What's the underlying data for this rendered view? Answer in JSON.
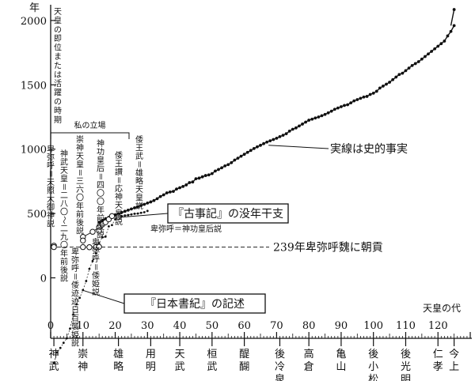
{
  "chart_data": {
    "type": "scatter",
    "y_unit": "年",
    "ylabel": "天皇の即位または活躍の時期",
    "xlabel": "天皇の代",
    "xlim": [
      0,
      130
    ],
    "ylim": [
      -470,
      2110
    ],
    "x_ticks": [
      10,
      20,
      30,
      40,
      50,
      60,
      70,
      80,
      90,
      100,
      110,
      120
    ],
    "y_ticks": [
      0,
      500,
      1000,
      1500,
      2000
    ],
    "emperors": [
      {
        "x": 1,
        "name": "神武"
      },
      {
        "x": 10,
        "name": "崇神"
      },
      {
        "x": 21,
        "name": "雄略"
      },
      {
        "x": 31,
        "name": "用明"
      },
      {
        "x": 40,
        "name": "天武"
      },
      {
        "x": 50,
        "name": "桓武"
      },
      {
        "x": 60,
        "name": "醍醐"
      },
      {
        "x": 71,
        "name": "後冷泉"
      },
      {
        "x": 80,
        "name": "高倉"
      },
      {
        "x": 90,
        "name": "亀山"
      },
      {
        "x": 100,
        "name": "後小松"
      },
      {
        "x": 110,
        "name": "後光明"
      },
      {
        "x": 120,
        "name": "仁孝"
      },
      {
        "x": 125,
        "name": "今上"
      }
    ],
    "series_historical": {
      "name": "実線は史的事実",
      "x": [
        15,
        16,
        17,
        18,
        19,
        20,
        21,
        22,
        23,
        24,
        25,
        26,
        27,
        28,
        29,
        30,
        31,
        32,
        33,
        34,
        35,
        36,
        37,
        38,
        39,
        40,
        41,
        42,
        43,
        44,
        45,
        46,
        47,
        48,
        49,
        50,
        51,
        52,
        53,
        54,
        55,
        56,
        57,
        58,
        59,
        60,
        61,
        62,
        63,
        64,
        65,
        66,
        67,
        68,
        69,
        70,
        71,
        72,
        73,
        74,
        75,
        76,
        77,
        78,
        79,
        80,
        81,
        82,
        83,
        84,
        85,
        86,
        87,
        88,
        89,
        90,
        91,
        92,
        93,
        94,
        95,
        96,
        97,
        98,
        99,
        100,
        101,
        102,
        103,
        104,
        105,
        106,
        107,
        108,
        109,
        110,
        111,
        112,
        113,
        114,
        115,
        116,
        117,
        118,
        119,
        120,
        121,
        122,
        123,
        124,
        125
      ],
      "y": [
        432,
        446,
        460,
        470,
        480,
        490,
        499,
        508,
        517,
        526,
        535,
        544,
        553,
        562,
        571,
        581,
        590,
        601,
        615,
        632,
        645,
        660,
        667,
        672,
        690,
        700,
        710,
        722,
        740,
        745,
        770,
        775,
        785,
        795,
        800,
        810,
        830,
        842,
        855,
        870,
        880,
        895,
        915,
        930,
        945,
        960,
        975,
        990,
        1005,
        1018,
        1030,
        1043,
        1055,
        1065,
        1075,
        1085,
        1097,
        1108,
        1120,
        1140,
        1155,
        1165,
        1180,
        1195,
        1210,
        1225,
        1233,
        1242,
        1250,
        1260,
        1270,
        1282,
        1295,
        1310,
        1320,
        1330,
        1340,
        1345,
        1360,
        1375,
        1385,
        1395,
        1405,
        1410,
        1425,
        1435,
        1450,
        1475,
        1490,
        1505,
        1520,
        1540,
        1560,
        1580,
        1590,
        1610,
        1630,
        1650,
        1665,
        1680,
        1700,
        1720,
        1740,
        1760,
        1780,
        1800,
        1820,
        1840,
        1880,
        1915,
        1960
      ]
    },
    "series_nihonshoki": {
      "name": "『日本書紀』の記述",
      "x": [
        1,
        2,
        3,
        4,
        5,
        6,
        7,
        8,
        9,
        10,
        11,
        12,
        13,
        14,
        15,
        16,
        17,
        18,
        19,
        20,
        21,
        22,
        23,
        24,
        25,
        26,
        27,
        28,
        29,
        30
      ],
      "y": [
        -660,
        -580,
        -545,
        -505,
        -470,
        -395,
        -285,
        -205,
        -155,
        -95,
        -25,
        70,
        130,
        190,
        270,
        315,
        320,
        400,
        410,
        455,
        470,
        480,
        485,
        488,
        493,
        498,
        500,
        505,
        510,
        520
      ]
    },
    "series_kojiki": {
      "name": "『古事記』の没年干支",
      "x": [
        10,
        13,
        15,
        16,
        17,
        18,
        19
      ],
      "y": [
        318,
        358,
        394,
        415,
        432,
        455,
        480
      ]
    },
    "series_author": {
      "name": "私の立場",
      "x": [
        1,
        10,
        15,
        21
      ],
      "y": [
        250,
        290,
        365,
        475
      ]
    },
    "series_himiko": {
      "x": [
        10,
        12,
        14,
        15
      ],
      "y": [
        239,
        238,
        239,
        241
      ]
    },
    "hline": {
      "y": 239,
      "label": "239年卑弥呼魏に朝貢"
    },
    "annotations": {
      "bracket_label": "私の立場",
      "jimmu": "神武天皇＝二八〇〜二九〇年前後説",
      "sujin": "崇神天皇＝三六〇年前後説",
      "jingu": "神功皇后＝四〇〇年前後説",
      "wosan": "倭王讃＝応神天皇説",
      "wobu": "倭王武＝雄略天皇説",
      "himiko_amaterasu": "卑弥呼＝天照大御神説",
      "himiko_momoso": "卑弥呼＝倭迹迹日百襲姫説",
      "himiko_yamatohime": "卑弥呼＝倭姫説",
      "himiko_jingu": "卑弥呼＝神功皇后説",
      "kojiki_box": "『古事記』の没年干支",
      "shoki_box": "『日本書紀』の記述",
      "historical_label": "実線は史的事実"
    }
  }
}
